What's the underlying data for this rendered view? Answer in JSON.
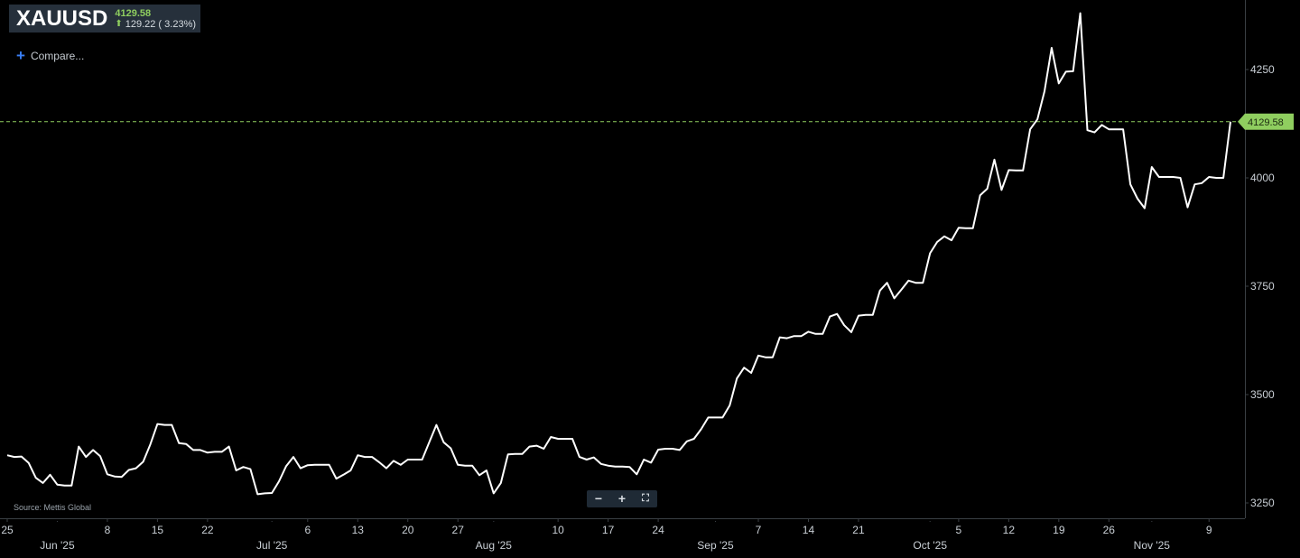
{
  "header": {
    "symbol": "XAUUSD",
    "price": "4129.58",
    "change": "129.22 ( 3.23%)",
    "change_icon": "up-arrow-icon"
  },
  "compare": {
    "label": "Compare..."
  },
  "source": "Source: Mettis Global",
  "zoom": {
    "minus": "−",
    "plus": "+",
    "fit": "⛶"
  },
  "colors": {
    "background": "#000000",
    "line": "#ffffff",
    "last_price": "#8fce5f",
    "axis_text": "#c9cfd5"
  },
  "chart_data": {
    "type": "line",
    "title": "",
    "xlabel": "",
    "ylabel": "",
    "ylim": [
      3225,
      4400
    ],
    "yticks": [
      3250,
      3500,
      3750,
      4000,
      4250
    ],
    "last_price": 4129.58,
    "last_price_label": "4129.58",
    "grid": false,
    "x_tick_labels": [
      {
        "x": "2025-05-25",
        "label": "25"
      },
      {
        "x": "2025-06-08",
        "label": "8"
      },
      {
        "x": "2025-06-15",
        "label": "15"
      },
      {
        "x": "2025-06-22",
        "label": "22"
      },
      {
        "x": "2025-07-06",
        "label": "6"
      },
      {
        "x": "2025-07-13",
        "label": "13"
      },
      {
        "x": "2025-07-20",
        "label": "20"
      },
      {
        "x": "2025-07-27",
        "label": "27"
      },
      {
        "x": "2025-08-10",
        "label": "10"
      },
      {
        "x": "2025-08-17",
        "label": "17"
      },
      {
        "x": "2025-08-24",
        "label": "24"
      },
      {
        "x": "2025-09-07",
        "label": "7"
      },
      {
        "x": "2025-09-14",
        "label": "14"
      },
      {
        "x": "2025-09-21",
        "label": "21"
      },
      {
        "x": "2025-10-05",
        "label": "5"
      },
      {
        "x": "2025-10-12",
        "label": "12"
      },
      {
        "x": "2025-10-19",
        "label": "19"
      },
      {
        "x": "2025-10-26",
        "label": "26"
      },
      {
        "x": "2025-11-09",
        "label": "9"
      }
    ],
    "month_labels": [
      {
        "x": "2025-06-01",
        "label": "Jun '25"
      },
      {
        "x": "2025-07-01",
        "label": "Jul '25"
      },
      {
        "x": "2025-08-01",
        "label": "Aug '25"
      },
      {
        "x": "2025-09-01",
        "label": "Sep '25"
      },
      {
        "x": "2025-10-01",
        "label": "Oct '25"
      },
      {
        "x": "2025-11-01",
        "label": "Nov '25"
      }
    ],
    "x_start": "2025-05-25",
    "x_end": "2025-11-12",
    "series": [
      {
        "values": [
          [
            "2025-05-25",
            3360
          ],
          [
            "2025-05-26",
            3356
          ],
          [
            "2025-05-27",
            3357
          ],
          [
            "2025-05-28",
            3342
          ],
          [
            "2025-05-29",
            3308
          ],
          [
            "2025-05-30",
            3296
          ],
          [
            "2025-05-31",
            3315
          ],
          [
            "2025-06-01",
            3292
          ],
          [
            "2025-06-02",
            3290
          ],
          [
            "2025-06-03",
            3290
          ],
          [
            "2025-06-04",
            3380
          ],
          [
            "2025-06-05",
            3356
          ],
          [
            "2025-06-06",
            3372
          ],
          [
            "2025-06-07",
            3358
          ],
          [
            "2025-06-08",
            3316
          ],
          [
            "2025-06-09",
            3311
          ],
          [
            "2025-06-10",
            3310
          ],
          [
            "2025-06-11",
            3326
          ],
          [
            "2025-06-12",
            3330
          ],
          [
            "2025-06-13",
            3345
          ],
          [
            "2025-06-14",
            3385
          ],
          [
            "2025-06-15",
            3432
          ],
          [
            "2025-06-16",
            3430
          ],
          [
            "2025-06-17",
            3430
          ],
          [
            "2025-06-18",
            3388
          ],
          [
            "2025-06-19",
            3386
          ],
          [
            "2025-06-20",
            3372
          ],
          [
            "2025-06-21",
            3372
          ],
          [
            "2025-06-22",
            3366
          ],
          [
            "2025-06-23",
            3368
          ],
          [
            "2025-06-24",
            3368
          ],
          [
            "2025-06-25",
            3380
          ],
          [
            "2025-06-26",
            3325
          ],
          [
            "2025-06-27",
            3333
          ],
          [
            "2025-06-28",
            3328
          ],
          [
            "2025-06-29",
            3270
          ],
          [
            "2025-06-30",
            3272
          ],
          [
            "2025-07-01",
            3273
          ],
          [
            "2025-07-02",
            3300
          ],
          [
            "2025-07-03",
            3335
          ],
          [
            "2025-07-04",
            3356
          ],
          [
            "2025-07-05",
            3330
          ],
          [
            "2025-07-06",
            3337
          ],
          [
            "2025-07-07",
            3338
          ],
          [
            "2025-07-08",
            3338
          ],
          [
            "2025-07-09",
            3338
          ],
          [
            "2025-07-10",
            3306
          ],
          [
            "2025-07-11",
            3315
          ],
          [
            "2025-07-12",
            3325
          ],
          [
            "2025-07-13",
            3360
          ],
          [
            "2025-07-14",
            3356
          ],
          [
            "2025-07-15",
            3356
          ],
          [
            "2025-07-16",
            3344
          ],
          [
            "2025-07-17",
            3330
          ],
          [
            "2025-07-18",
            3347
          ],
          [
            "2025-07-19",
            3338
          ],
          [
            "2025-07-20",
            3350
          ],
          [
            "2025-07-21",
            3350
          ],
          [
            "2025-07-22",
            3350
          ],
          [
            "2025-07-23",
            3390
          ],
          [
            "2025-07-24",
            3430
          ],
          [
            "2025-07-25",
            3390
          ],
          [
            "2025-07-26",
            3376
          ],
          [
            "2025-07-27",
            3338
          ],
          [
            "2025-07-28",
            3336
          ],
          [
            "2025-07-29",
            3336
          ],
          [
            "2025-07-30",
            3314
          ],
          [
            "2025-07-31",
            3325
          ],
          [
            "2025-08-01",
            3272
          ],
          [
            "2025-08-02",
            3296
          ],
          [
            "2025-08-03",
            3362
          ],
          [
            "2025-08-04",
            3363
          ],
          [
            "2025-08-05",
            3363
          ],
          [
            "2025-08-06",
            3380
          ],
          [
            "2025-08-07",
            3382
          ],
          [
            "2025-08-08",
            3375
          ],
          [
            "2025-08-09",
            3402
          ],
          [
            "2025-08-10",
            3398
          ],
          [
            "2025-08-11",
            3398
          ],
          [
            "2025-08-12",
            3398
          ],
          [
            "2025-08-13",
            3356
          ],
          [
            "2025-08-14",
            3350
          ],
          [
            "2025-08-15",
            3355
          ],
          [
            "2025-08-16",
            3340
          ],
          [
            "2025-08-17",
            3336
          ],
          [
            "2025-08-18",
            3334
          ],
          [
            "2025-08-19",
            3334
          ],
          [
            "2025-08-20",
            3333
          ],
          [
            "2025-08-21",
            3316
          ],
          [
            "2025-08-22",
            3350
          ],
          [
            "2025-08-23",
            3343
          ],
          [
            "2025-08-24",
            3373
          ],
          [
            "2025-08-25",
            3375
          ],
          [
            "2025-08-26",
            3375
          ],
          [
            "2025-08-27",
            3372
          ],
          [
            "2025-08-28",
            3392
          ],
          [
            "2025-08-29",
            3398
          ],
          [
            "2025-08-30",
            3420
          ],
          [
            "2025-08-31",
            3447
          ],
          [
            "2025-09-01",
            3447
          ],
          [
            "2025-09-02",
            3447
          ],
          [
            "2025-09-03",
            3475
          ],
          [
            "2025-09-04",
            3537
          ],
          [
            "2025-09-05",
            3562
          ],
          [
            "2025-09-06",
            3550
          ],
          [
            "2025-09-07",
            3590
          ],
          [
            "2025-09-08",
            3586
          ],
          [
            "2025-09-09",
            3586
          ],
          [
            "2025-09-10",
            3632
          ],
          [
            "2025-09-11",
            3630
          ],
          [
            "2025-09-12",
            3635
          ],
          [
            "2025-09-13",
            3635
          ],
          [
            "2025-09-14",
            3645
          ],
          [
            "2025-09-15",
            3640
          ],
          [
            "2025-09-16",
            3640
          ],
          [
            "2025-09-17",
            3680
          ],
          [
            "2025-09-18",
            3686
          ],
          [
            "2025-09-19",
            3660
          ],
          [
            "2025-09-20",
            3644
          ],
          [
            "2025-09-21",
            3682
          ],
          [
            "2025-09-22",
            3684
          ],
          [
            "2025-09-23",
            3684
          ],
          [
            "2025-09-24",
            3740
          ],
          [
            "2025-09-25",
            3758
          ],
          [
            "2025-09-26",
            3722
          ],
          [
            "2025-09-27",
            3742
          ],
          [
            "2025-09-28",
            3763
          ],
          [
            "2025-09-29",
            3758
          ],
          [
            "2025-09-30",
            3758
          ],
          [
            "2025-10-01",
            3826
          ],
          [
            "2025-10-02",
            3852
          ],
          [
            "2025-10-03",
            3865
          ],
          [
            "2025-10-04",
            3856
          ],
          [
            "2025-10-05",
            3885
          ],
          [
            "2025-10-06",
            3884
          ],
          [
            "2025-10-07",
            3884
          ],
          [
            "2025-10-08",
            3960
          ],
          [
            "2025-10-09",
            3975
          ],
          [
            "2025-10-10",
            4042
          ],
          [
            "2025-10-11",
            3972
          ],
          [
            "2025-10-12",
            4018
          ],
          [
            "2025-10-13",
            4017
          ],
          [
            "2025-10-14",
            4017
          ],
          [
            "2025-10-15",
            4112
          ],
          [
            "2025-10-16",
            4135
          ],
          [
            "2025-10-17",
            4200
          ],
          [
            "2025-10-18",
            4300
          ],
          [
            "2025-10-19",
            4218
          ],
          [
            "2025-10-20",
            4245
          ],
          [
            "2025-10-21",
            4246
          ],
          [
            "2025-10-22",
            4380
          ],
          [
            "2025-10-23",
            4110
          ],
          [
            "2025-10-24",
            4105
          ],
          [
            "2025-10-25",
            4122
          ],
          [
            "2025-10-26",
            4112
          ],
          [
            "2025-10-27",
            4112
          ],
          [
            "2025-10-28",
            4112
          ],
          [
            "2025-10-29",
            3985
          ],
          [
            "2025-10-30",
            3952
          ],
          [
            "2025-10-31",
            3930
          ],
          [
            "2025-11-01",
            4025
          ],
          [
            "2025-11-02",
            4002
          ],
          [
            "2025-11-03",
            4002
          ],
          [
            "2025-11-04",
            4002
          ],
          [
            "2025-11-05",
            4000
          ],
          [
            "2025-11-06",
            3932
          ],
          [
            "2025-11-07",
            3985
          ],
          [
            "2025-11-08",
            3988
          ],
          [
            "2025-11-09",
            4002
          ],
          [
            "2025-11-10",
            4000
          ],
          [
            "2025-11-11",
            4000
          ],
          [
            "2025-11-12",
            4129.58
          ]
        ]
      }
    ]
  }
}
